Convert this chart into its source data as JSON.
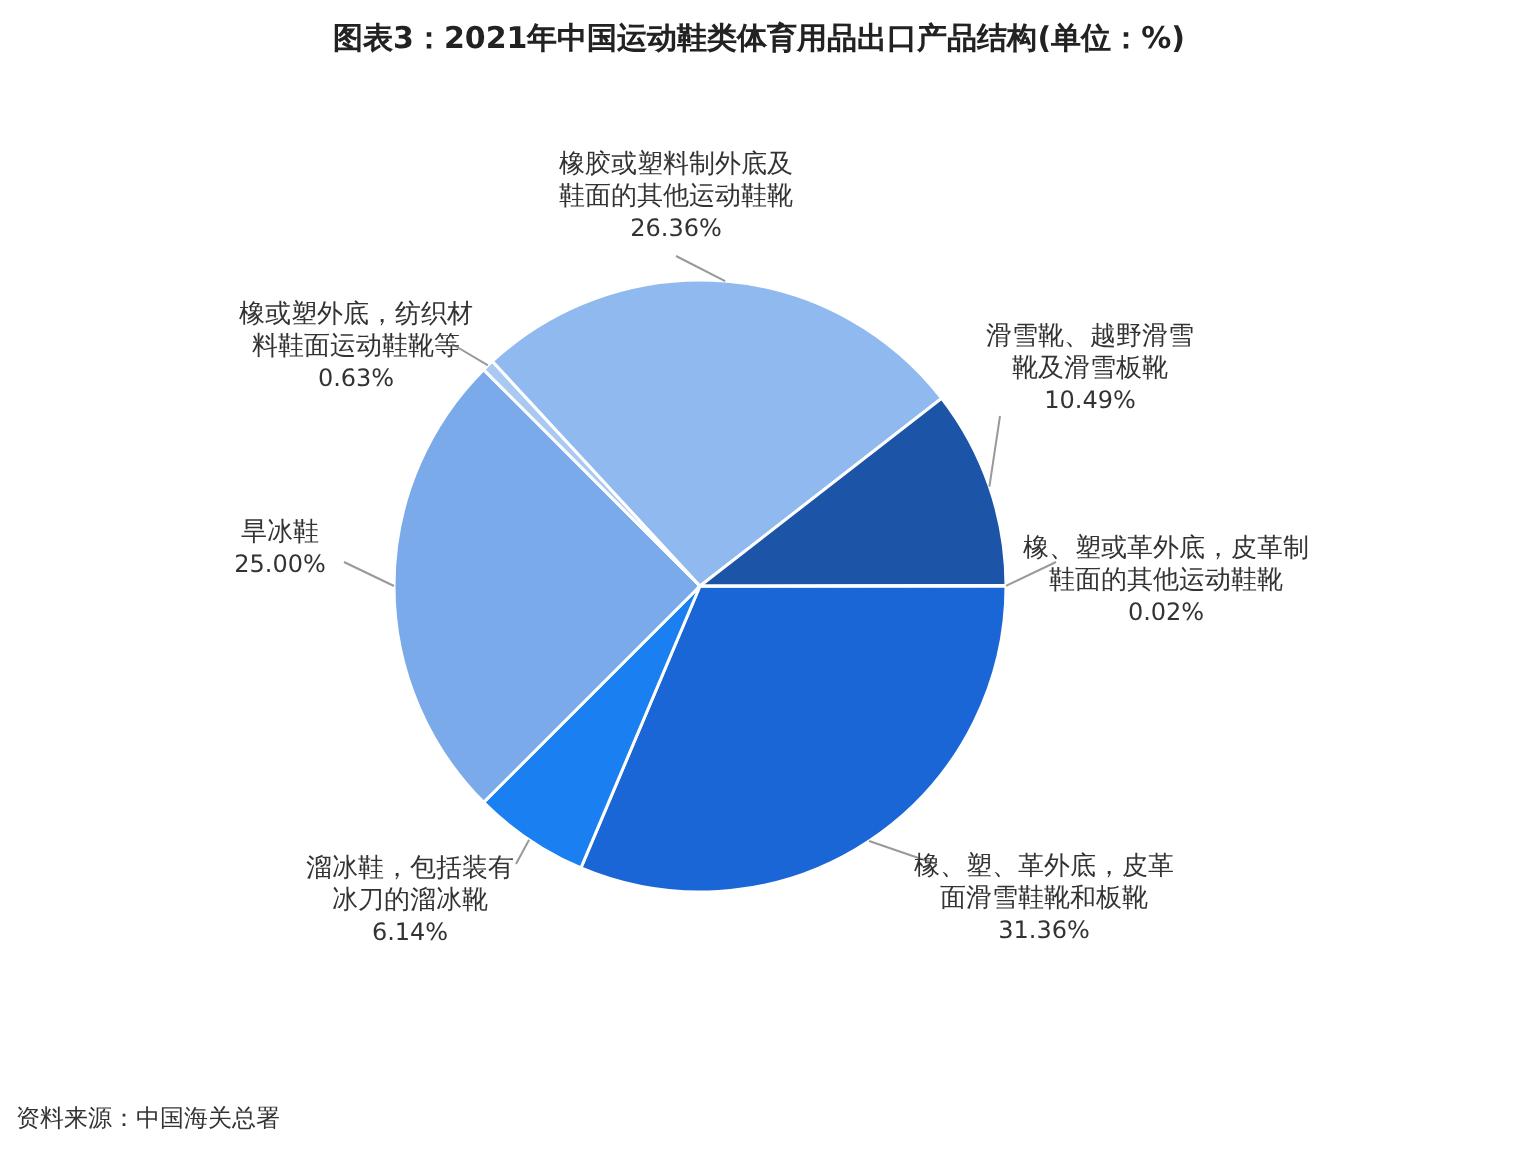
{
  "chart_data": {
    "type": "pie",
    "title": "图表3：2021年中国运动鞋类体育用品出口产品结构(单位：%)",
    "categories": [
      "橡、塑、革外底，皮革面滑雪鞋靴和板靴",
      "溜冰鞋，包括装有冰刀的溜冰靴",
      "旱冰鞋",
      "橡或塑外底，纺织材料鞋面运动鞋靴等",
      "橡胶或塑料制外底及鞋面的其他运动鞋靴",
      "滑雪靴、越野滑雪靴及滑雪板靴",
      "橡、塑或革外底，皮革制鞋面的其他运动鞋靴"
    ],
    "values": [
      31.36,
      6.14,
      25.0,
      0.63,
      26.36,
      10.49,
      0.02
    ],
    "value_labels": [
      "31.36%",
      "6.14%",
      "25.00%",
      "0.63%",
      "26.36%",
      "10.49%",
      "0.02%"
    ],
    "colors": [
      "#1a66d6",
      "#1a80f2",
      "#7aaaea",
      "#a9c9f2",
      "#90b9ef",
      "#1c55a8",
      "#4a7fd0"
    ],
    "annotations": [
      "资料来源：中国海关总署"
    ]
  }
}
